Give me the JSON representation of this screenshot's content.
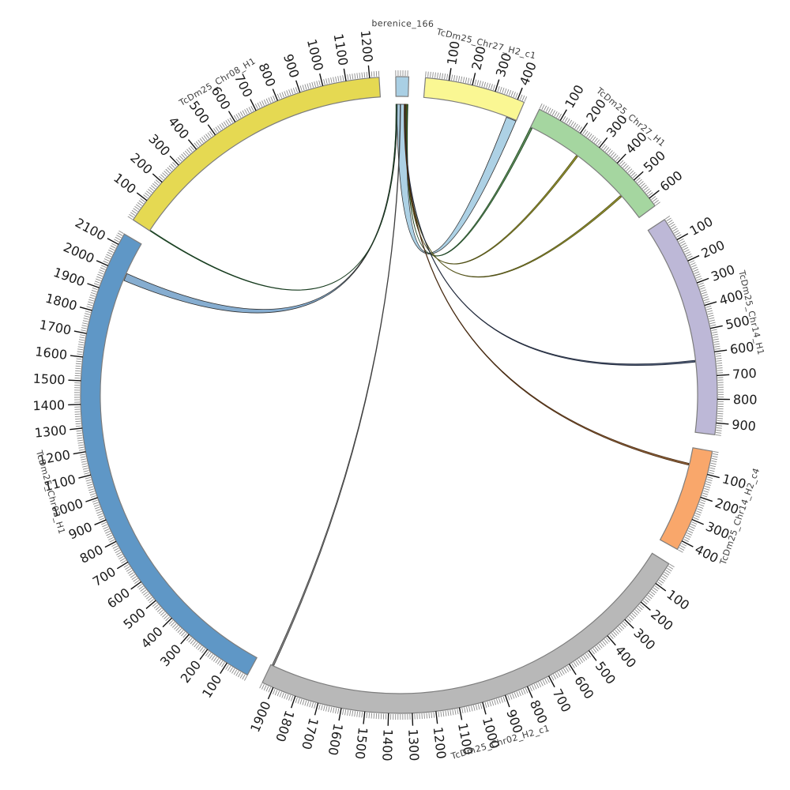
{
  "figure": {
    "title": "",
    "background": "#ffffff",
    "kind": "circos synteny plot"
  },
  "chart_data": {
    "type": "chord_diagram",
    "grid": false,
    "legend": false,
    "layout": {
      "center": [
        505,
        500
      ],
      "r_inner": 378,
      "r_outer": 403,
      "gap_deg": 3,
      "start_deg": -0.58,
      "minor_tick_len": 7,
      "major_tick_len": 16,
      "num_label_radius": 423,
      "name_radius": 458
    },
    "ticks": {
      "minor_interval": 10,
      "major_interval": 100
    },
    "segments": [
      {
        "key": "berenice_166",
        "label": "berenice_166",
        "length": 55,
        "color": "#A9CFE4",
        "name_r": 470,
        "tick_labels": []
      },
      {
        "key": "chr27_h2_c1",
        "label": "TcDm25_Chr27_H2_c1",
        "length": 430,
        "color": "#FAF793",
        "tick_labels": [
          100,
          200,
          300,
          400
        ]
      },
      {
        "key": "chr27_h1",
        "label": "TcDm25_Chr27_H1",
        "length": 640,
        "color": "#A5D6A0",
        "tick_labels": [
          100,
          200,
          300,
          400,
          500,
          600
        ]
      },
      {
        "key": "chr14_h1",
        "label": "TcDm25_Chr14_H1",
        "length": 950,
        "color": "#BDB8D7",
        "tick_labels": [
          100,
          200,
          300,
          400,
          500,
          600,
          700,
          800,
          900
        ]
      },
      {
        "key": "chr14_h2_c4",
        "label": "TcDm25_Chr14_H2_c4",
        "length": 440,
        "color": "#F9A76B",
        "tick_labels": [
          100,
          200,
          300,
          400
        ]
      },
      {
        "key": "chr02_h2_c1",
        "label": "TcDm25_Chr02_H2_c1",
        "length": 1950,
        "color": "#B8B8B8",
        "tick_labels": [
          100,
          200,
          300,
          400,
          500,
          600,
          700,
          800,
          900,
          1000,
          1100,
          1200,
          1300,
          1400,
          1500,
          1600,
          1700,
          1800,
          1900
        ]
      },
      {
        "key": "chr02_h1",
        "label": "TcDm25_Chr02_H1",
        "length": 2150,
        "color": "#5F97C6",
        "tick_labels": [
          100,
          200,
          300,
          400,
          500,
          600,
          700,
          800,
          900,
          1000,
          1100,
          1200,
          1300,
          1400,
          1500,
          1600,
          1700,
          1800,
          1900,
          2000,
          2100
        ]
      },
      {
        "key": "chr08_h1",
        "label": "TcDm25_Chr08_H1",
        "length": 1240,
        "color": "#E5D952",
        "tick_labels": [
          100,
          200,
          300,
          400,
          500,
          600,
          700,
          800,
          900,
          1000,
          1100,
          1200
        ]
      }
    ],
    "chords": [
      {
        "source": {
          "key": "berenice_166",
          "start": 4,
          "end": 52
        },
        "target": {
          "key": "chr27_h2_c1",
          "start": 383,
          "end": 429
        },
        "fill": "#A9CFE4",
        "stroke": "#2F2F2F"
      },
      {
        "source": {
          "key": "berenice_166",
          "start": 52,
          "end": 55
        },
        "target": {
          "key": "chr27_h1",
          "start": 0,
          "end": 9
        },
        "fill": "#55864F",
        "stroke": "#1C4422"
      },
      {
        "source": {
          "key": "berenice_166",
          "start": 47,
          "end": 49.5
        },
        "target": {
          "key": "chr27_h1",
          "start": 242,
          "end": 250
        },
        "fill": "#8F8E26",
        "stroke": "#504F15"
      },
      {
        "source": {
          "key": "berenice_166",
          "start": 44,
          "end": 46.5
        },
        "target": {
          "key": "chr27_h1",
          "start": 510,
          "end": 518
        },
        "fill": "#8F8E26",
        "stroke": "#504F15"
      },
      {
        "source": {
          "key": "berenice_166",
          "start": 41,
          "end": 43.5
        },
        "target": {
          "key": "chr14_h1",
          "start": 626,
          "end": 634
        },
        "fill": "#46536E",
        "stroke": "#20283A"
      },
      {
        "source": {
          "key": "berenice_166",
          "start": 38,
          "end": 40.5
        },
        "target": {
          "key": "chr14_h2_c4",
          "start": 72,
          "end": 80
        },
        "fill": "#8A5A30",
        "stroke": "#45280F"
      },
      {
        "source": {
          "key": "berenice_166",
          "start": 19,
          "end": 21.5
        },
        "target": {
          "key": "chr02_h2_c1",
          "start": 1936,
          "end": 1944
        },
        "fill": "#7E7E7E",
        "stroke": "#3F3F3F"
      },
      {
        "source": {
          "key": "berenice_166",
          "start": 0,
          "end": 6
        },
        "target": {
          "key": "chr02_h1",
          "start": 1968,
          "end": 2002
        },
        "fill": "#7FA9CE",
        "stroke": "#2F2F2F"
      },
      {
        "source": {
          "key": "berenice_166",
          "start": 0,
          "end": 2
        },
        "target": {
          "key": "chr08_h1",
          "start": 0,
          "end": 4
        },
        "fill": "#2E6637",
        "stroke": "#153A1D"
      }
    ],
    "styles": {
      "band_stroke": "#7d7d7d",
      "band_stroke_width": 1.2,
      "minor_tick_color": "#8a8a8a",
      "major_tick_color": "#111111",
      "num_label_color": "#1a1a1a",
      "name_label_color": "#3d3d3d"
    }
  }
}
